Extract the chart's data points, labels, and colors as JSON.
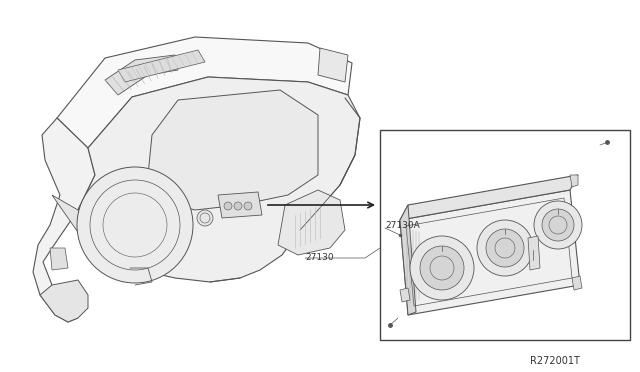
{
  "bg_color": "#ffffff",
  "line_color": "#555555",
  "box_color": "#ffffff",
  "text_color": "#333333",
  "label_27130A": "27130A",
  "label_27130": "27130",
  "ref_code": "R272001T",
  "arrow_color": "#222222",
  "fig_width": 6.4,
  "fig_height": 3.72,
  "dpi": 100
}
